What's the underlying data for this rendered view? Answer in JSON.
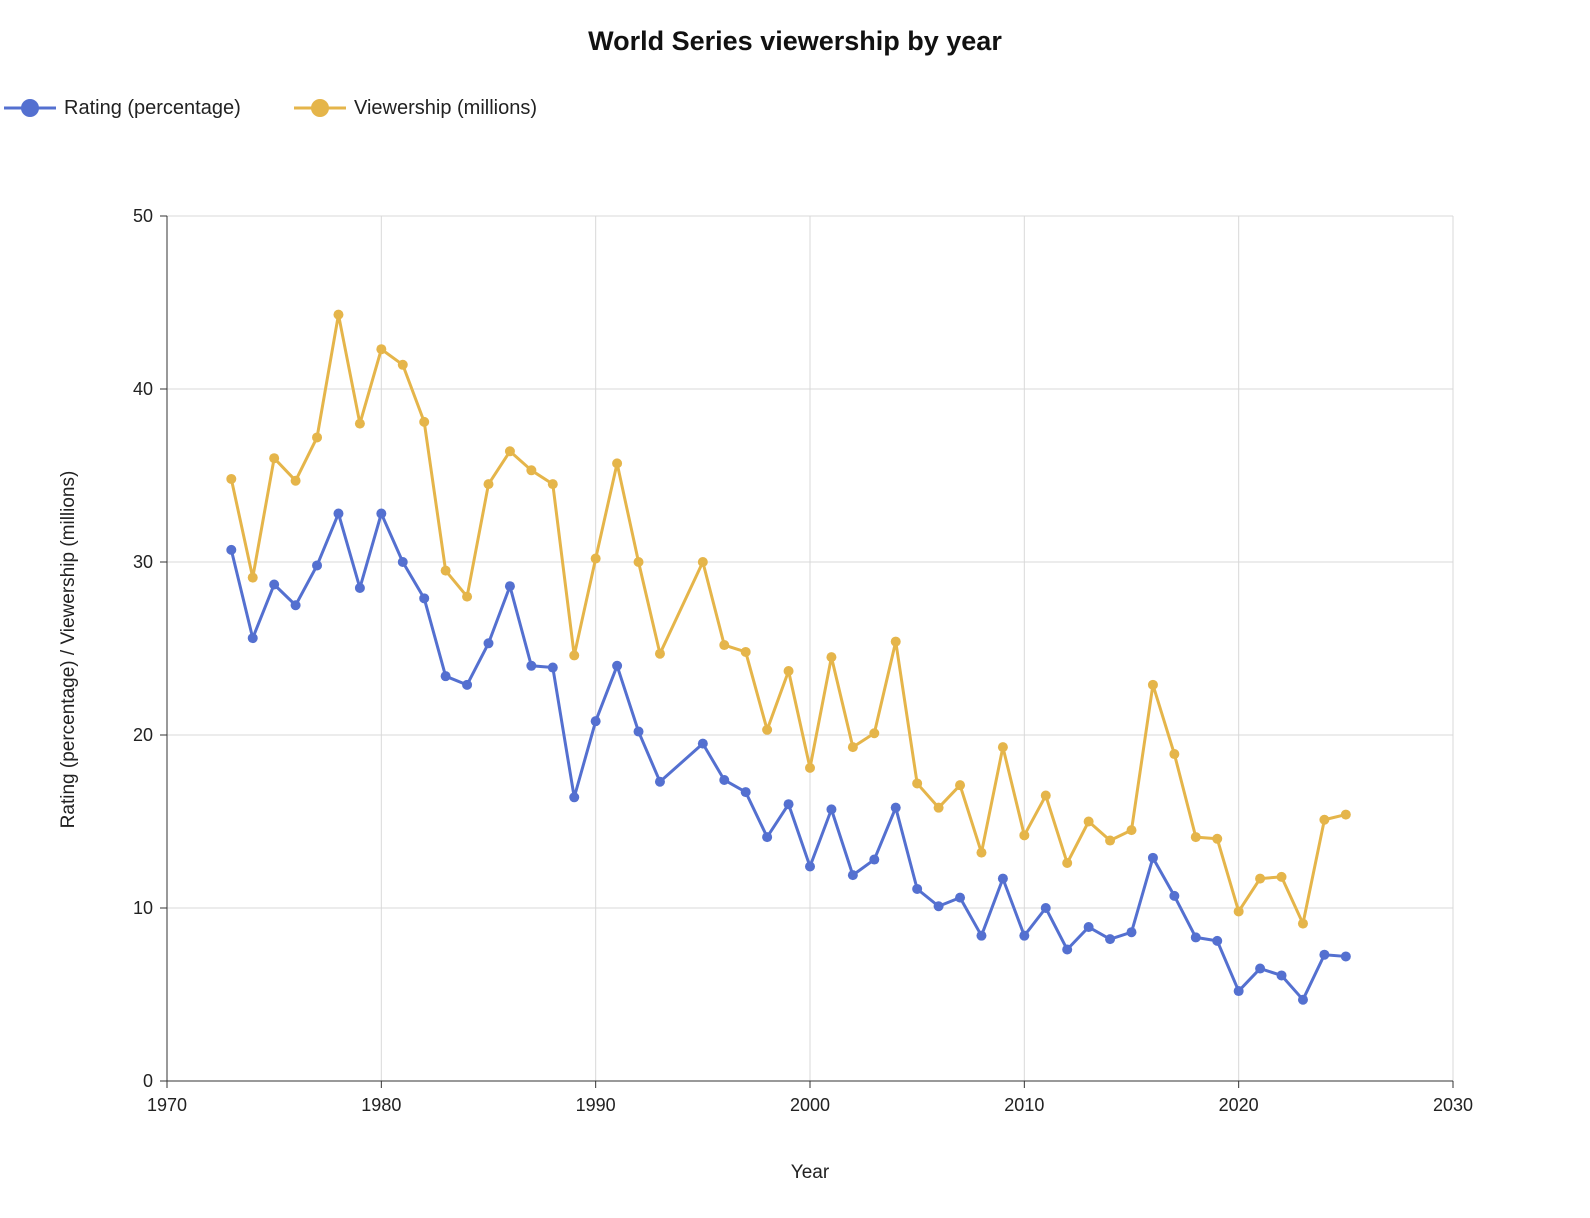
{
  "chart_data": {
    "type": "line",
    "title": "World Series viewership by year",
    "xlabel": "Year",
    "ylabel": "Rating (percentage) / Viewership (millions)",
    "xlim": [
      1970,
      2030
    ],
    "ylim": [
      0,
      50
    ],
    "xticks": [
      1970,
      1980,
      1990,
      2000,
      2010,
      2020,
      2030
    ],
    "yticks": [
      0,
      10,
      20,
      30,
      40,
      50
    ],
    "grid": true,
    "legend_position": "top-left",
    "x": [
      1973,
      1974,
      1975,
      1976,
      1977,
      1978,
      1979,
      1980,
      1981,
      1982,
      1983,
      1984,
      1985,
      1986,
      1987,
      1988,
      1989,
      1990,
      1991,
      1992,
      1993,
      1995,
      1996,
      1997,
      1998,
      1999,
      2000,
      2001,
      2002,
      2003,
      2004,
      2005,
      2006,
      2007,
      2008,
      2009,
      2010,
      2011,
      2012,
      2013,
      2014,
      2015,
      2016,
      2017,
      2018,
      2019,
      2020,
      2021,
      2022,
      2023,
      2024,
      2025
    ],
    "series": [
      {
        "name": "Rating (percentage)",
        "color": "#5470d0",
        "values": [
          30.7,
          25.6,
          28.7,
          27.5,
          29.8,
          32.8,
          28.5,
          32.8,
          30.0,
          27.9,
          23.4,
          22.9,
          25.3,
          28.6,
          24.0,
          23.9,
          16.4,
          20.8,
          24.0,
          20.2,
          17.3,
          19.5,
          17.4,
          16.7,
          14.1,
          16.0,
          12.4,
          15.7,
          11.9,
          12.8,
          15.8,
          11.1,
          10.1,
          10.6,
          8.4,
          11.7,
          8.4,
          10.0,
          7.6,
          8.9,
          8.2,
          8.6,
          12.9,
          10.7,
          8.3,
          8.1,
          5.2,
          6.5,
          6.1,
          4.7,
          7.3,
          7.2
        ]
      },
      {
        "name": "Viewership (millions)",
        "color": "#e5b54a",
        "values": [
          34.8,
          29.1,
          36.0,
          34.7,
          37.2,
          44.3,
          38.0,
          42.3,
          41.4,
          38.1,
          29.5,
          28.0,
          34.5,
          36.4,
          35.3,
          34.5,
          24.6,
          30.2,
          35.7,
          30.0,
          24.7,
          30.0,
          25.2,
          24.8,
          20.3,
          23.7,
          18.1,
          24.5,
          19.3,
          20.1,
          25.4,
          17.2,
          15.8,
          17.1,
          13.2,
          19.3,
          14.2,
          16.5,
          12.6,
          15.0,
          13.9,
          14.5,
          22.9,
          18.9,
          14.1,
          14.0,
          9.8,
          11.7,
          11.8,
          9.1,
          15.1,
          15.4
        ]
      }
    ]
  }
}
